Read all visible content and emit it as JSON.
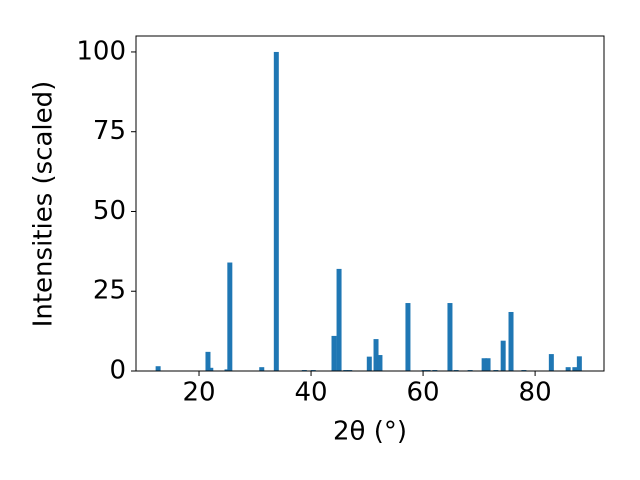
{
  "chart_data": {
    "type": "bar",
    "x_label": "2θ (°)",
    "y_label": "Intensities (scaled)",
    "color": "#1f77b4",
    "x": [
      12.7,
      21.6,
      22.1,
      25.0,
      25.5,
      31.2,
      33.8,
      38.8,
      40.4,
      44.1,
      45.0,
      46.2,
      46.9,
      50.4,
      51.6,
      52.3,
      57.3,
      60.2,
      60.9,
      62.1,
      64.8,
      65.9,
      68.4,
      70.9,
      71.6,
      73.0,
      74.3,
      75.7,
      78.0,
      82.9,
      85.9,
      87.1,
      87.9
    ],
    "values": [
      1.5,
      6,
      1,
      0.5,
      34,
      1.2,
      100,
      0.3,
      0.3,
      11,
      32,
      0.3,
      0.3,
      4.5,
      10,
      5,
      21.3,
      0.3,
      0.3,
      0.3,
      21.3,
      0.3,
      0.3,
      4,
      4,
      0.3,
      9.5,
      18.5,
      0.3,
      5.3,
      1.2,
      1.2,
      4.6
    ],
    "xlim": [
      8.75,
      92.3
    ],
    "ylim": [
      0,
      105
    ],
    "xticks": [
      20,
      40,
      60,
      80
    ],
    "yticks": [
      0,
      25,
      50,
      75,
      100
    ]
  }
}
